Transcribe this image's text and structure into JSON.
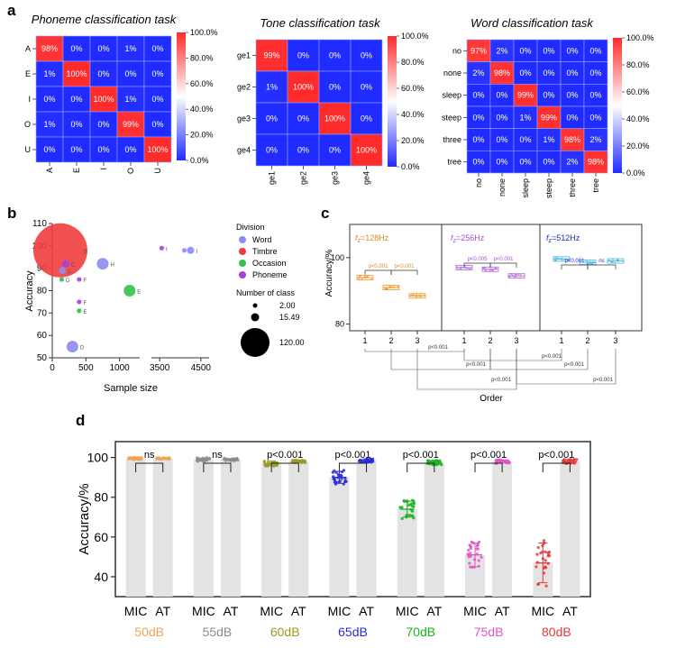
{
  "panel_letters": [
    "a",
    "b",
    "c",
    "d"
  ],
  "chart_data": [
    {
      "id": "phoneme",
      "type": "heatmap",
      "title": "Phoneme classification task",
      "rows": [
        "A",
        "E",
        "I",
        "O",
        "U"
      ],
      "cols": [
        "A",
        "E",
        "I",
        "O",
        "U"
      ],
      "values": [
        [
          98,
          0,
          0,
          1,
          0
        ],
        [
          1,
          100,
          0,
          0,
          0
        ],
        [
          0,
          0,
          100,
          1,
          0
        ],
        [
          1,
          0,
          0,
          99,
          0
        ],
        [
          0,
          0,
          0,
          0,
          100
        ]
      ],
      "colorbar_ticks": [
        "100.0%",
        "80.0%",
        "60.0%",
        "40.0%",
        "20.0%",
        "0.0%"
      ],
      "colors": {
        "low": "#1f2bff",
        "mid": "#ffffff",
        "high": "#ff2b2b"
      }
    },
    {
      "id": "tone",
      "type": "heatmap",
      "title": "Tone classification task",
      "rows": [
        "ge1",
        "ge2",
        "ge3",
        "ge4"
      ],
      "cols": [
        "ge1",
        "ge2",
        "ge3",
        "ge4"
      ],
      "values": [
        [
          99,
          0,
          0,
          0
        ],
        [
          1,
          100,
          0,
          0
        ],
        [
          0,
          0,
          100,
          0
        ],
        [
          0,
          0,
          0,
          100
        ]
      ],
      "colorbar_ticks": [
        "100.0%",
        "80.0%",
        "60.0%",
        "40.0%",
        "20.0%",
        "0.0%"
      ],
      "colors": {
        "low": "#1f2bff",
        "mid": "#ffffff",
        "high": "#ff2b2b"
      }
    },
    {
      "id": "word",
      "type": "heatmap",
      "title": "Word classification task",
      "rows": [
        "no",
        "none",
        "sleep",
        "steep",
        "three",
        "tree"
      ],
      "cols": [
        "no",
        "none",
        "sleep",
        "steep",
        "three",
        "tree"
      ],
      "values": [
        [
          97,
          2,
          0,
          0,
          0,
          0
        ],
        [
          2,
          98,
          0,
          0,
          0,
          0
        ],
        [
          0,
          0,
          99,
          0,
          0,
          0
        ],
        [
          0,
          0,
          1,
          99,
          0,
          0
        ],
        [
          0,
          0,
          0,
          1,
          98,
          2
        ],
        [
          0,
          0,
          0,
          0,
          2,
          98
        ]
      ],
      "colorbar_ticks": [
        "100.0%",
        "80.0%",
        "60.0%",
        "40.0%",
        "20.0%",
        "0.0%"
      ],
      "colors": {
        "low": "#1f2bff",
        "mid": "#ffffff",
        "high": "#ff2b2b"
      }
    },
    {
      "id": "bubble",
      "type": "scatter",
      "xlabel": "Sample size",
      "ylabel": "Accuracy",
      "x_ticks": [
        "0",
        "500",
        "1000",
        "3500",
        "4500"
      ],
      "y_ticks": [
        "50",
        "60",
        "70",
        "80",
        "90",
        "100",
        "110"
      ],
      "ylim": [
        50,
        110
      ],
      "legend_title": "Division",
      "legend": [
        {
          "name": "Word",
          "color": "#8b8cf0"
        },
        {
          "name": "Timbre",
          "color": "#ef3d3d"
        },
        {
          "name": "Occasion",
          "color": "#33c24a"
        },
        {
          "name": "Phoneme",
          "color": "#a43fe0"
        }
      ],
      "size_title": "Number of class",
      "size_legend": [
        "2.00",
        "15.49",
        "120.00"
      ],
      "points": [
        {
          "label": "B",
          "x": 120,
          "y": 98,
          "classes": 120,
          "group": "Timbre"
        },
        {
          "label": "C",
          "x": 200,
          "y": 92,
          "classes": 10,
          "group": "Phoneme"
        },
        {
          "label": "C",
          "x": 150,
          "y": 89,
          "classes": 10,
          "group": "Word"
        },
        {
          "label": "D",
          "x": 140,
          "y": 85,
          "classes": 2,
          "group": "Occasion"
        },
        {
          "label": "F",
          "x": 400,
          "y": 85,
          "classes": 2,
          "group": "Phoneme"
        },
        {
          "label": "F",
          "x": 400,
          "y": 75,
          "classes": 2,
          "group": "Phoneme"
        },
        {
          "label": "E",
          "x": 400,
          "y": 71,
          "classes": 2,
          "group": "Occasion"
        },
        {
          "label": "D",
          "x": 300,
          "y": 55,
          "classes": 15,
          "group": "Word"
        },
        {
          "label": "H",
          "x": 750,
          "y": 92,
          "classes": 15,
          "group": "Word"
        },
        {
          "label": "E",
          "x": 1150,
          "y": 80,
          "classes": 15,
          "group": "Occasion"
        },
        {
          "label": "I",
          "x": 3550,
          "y": 99,
          "classes": 4,
          "group": "Phoneme"
        },
        {
          "label": "",
          "x": 4100,
          "y": 98,
          "classes": 4,
          "group": "Word"
        },
        {
          "label": "I",
          "x": 4250,
          "y": 98,
          "classes": 6,
          "group": "Word"
        }
      ]
    },
    {
      "id": "order",
      "type": "scatter",
      "ylabel": "Accuracy/%",
      "xlabel": "Order",
      "y_ticks": [
        "80",
        "100"
      ],
      "ylim": [
        78,
        110
      ],
      "groups": [
        {
          "label": "f<sub>z</sub>=128Hz",
          "sym": "f",
          "sub": "z",
          "text": "=128Hz",
          "color": "#f0962a",
          "orders": [
            "1",
            "2",
            "3"
          ],
          "means": [
            94,
            91,
            88.5
          ],
          "sig": [
            {
              "from": 0,
              "to": 1,
              "text": "p<0.001"
            },
            {
              "from": 1,
              "to": 2,
              "text": "p<0.001"
            }
          ]
        },
        {
          "label": "fz=256Hz",
          "sym": "f",
          "sub": "z",
          "text": "=256Hz",
          "color": "#b26be0",
          "orders": [
            "1",
            "2",
            "3"
          ],
          "means": [
            97,
            96.5,
            94.5
          ],
          "sig": [
            {
              "from": 0,
              "to": 1,
              "text": "p<0.005"
            },
            {
              "from": 1,
              "to": 2,
              "text": "p<0.001"
            }
          ]
        },
        {
          "label": "fz=512Hz",
          "sym": "f",
          "sub": "z",
          "text": "=512Hz",
          "color": "#3fb3e8",
          "orders": [
            "1",
            "2",
            "3"
          ],
          "means": [
            99.6,
            98.6,
            99
          ],
          "sig": [
            {
              "from": 0,
              "to": 1,
              "text": "p<0.001"
            },
            {
              "from": 1,
              "to": 2,
              "text": "ns"
            }
          ]
        }
      ],
      "group_label_colors": [
        "#e2891a",
        "#a34fd6",
        "#2727c9"
      ],
      "bottom_sig": [
        "p<0.001",
        "p<0.001",
        "p<0.001",
        "p<0.001",
        "p<0.001",
        "p<0.001"
      ]
    },
    {
      "id": "noise",
      "type": "bar",
      "ylabel": "Accuracy/%",
      "y_ticks": [
        "40",
        "60",
        "80",
        "100"
      ],
      "ylim": [
        30,
        108
      ],
      "bar_labels": [
        "MIC",
        "AT"
      ],
      "categories": [
        "50dB",
        "55dB",
        "60dB",
        "65dB",
        "70dB",
        "75dB",
        "80dB"
      ],
      "category_colors": [
        "#f2a354",
        "#8c8c8c",
        "#9a9a1f",
        "#2b2bd6",
        "#18b41e",
        "#e055c5",
        "#e23a3a"
      ],
      "mic_means": [
        99.5,
        99,
        97,
        90,
        74,
        51,
        47
      ],
      "mic_sd": [
        0.5,
        0.8,
        1.2,
        3,
        4,
        6,
        10
      ],
      "at_means": [
        99.5,
        99,
        98,
        98.5,
        97.5,
        98,
        98
      ],
      "at_sd": [
        0.3,
        0.5,
        0.6,
        0.8,
        1,
        0.8,
        0.9
      ],
      "sig": [
        "ns",
        "ns",
        "p<0.001",
        "p<0.001",
        "p<0.001",
        "p<0.001",
        "p<0.001"
      ]
    }
  ]
}
